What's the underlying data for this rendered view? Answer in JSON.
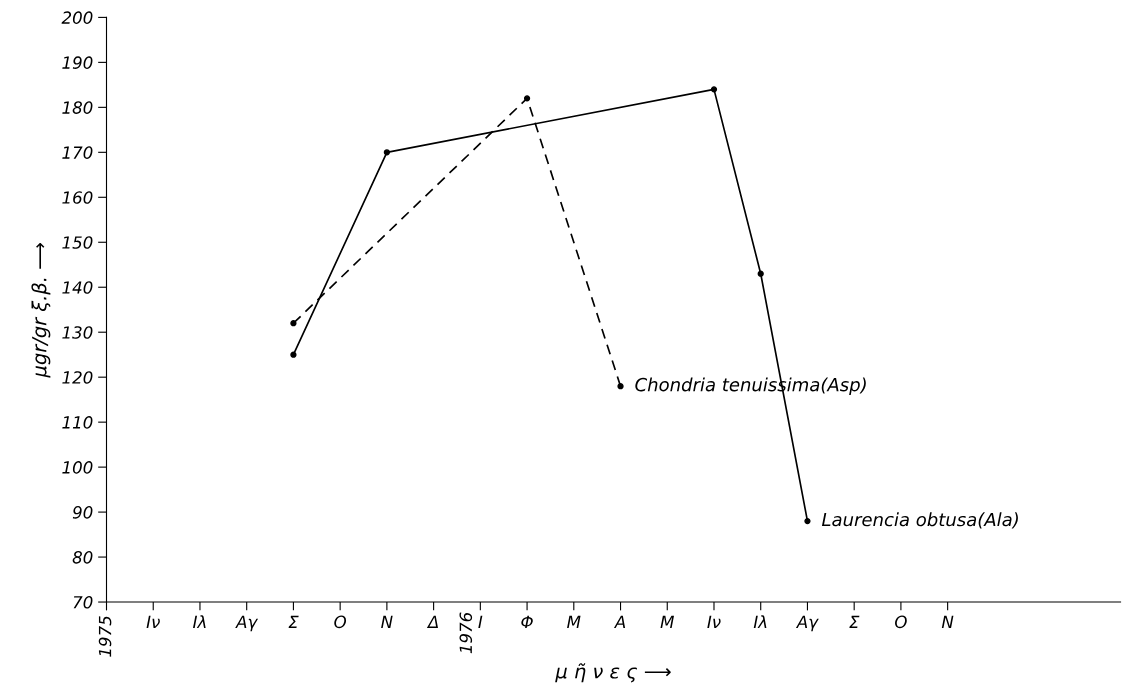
{
  "chart_data": {
    "type": "line",
    "xlabel": "μ ῆ ν ε ς ⟶",
    "ylabel": "μgr/gr ξ.β. ⟶",
    "categories": [
      "1975",
      "Ιν",
      "Ιλ",
      "Αγ",
      "Σ",
      "Ο",
      "Ν",
      "Δ",
      "Ι",
      "Φ",
      "Μ",
      "Α",
      "Μ",
      "Ιν",
      "Ιλ",
      "Αγ",
      "Σ",
      "Ο",
      "Ν"
    ],
    "series": [
      {
        "name": "Laurencia obtusa(Ala)",
        "color": "#000000",
        "line_style": "solid",
        "values": [
          null,
          null,
          null,
          null,
          125,
          null,
          170,
          null,
          null,
          null,
          null,
          null,
          null,
          184,
          143,
          88,
          null,
          null,
          null
        ]
      },
      {
        "name": "Chondria tenuissima(Asp)",
        "color": "#000000",
        "line_style": "dashed",
        "values": [
          null,
          null,
          null,
          null,
          132,
          null,
          null,
          null,
          null,
          182,
          null,
          118,
          null,
          null,
          null,
          null,
          null,
          null,
          null
        ]
      }
    ],
    "ylim": [
      70,
      200
    ],
    "yticks": [
      70,
      80,
      90,
      100,
      110,
      120,
      130,
      140,
      150,
      160,
      170,
      180,
      190,
      200
    ],
    "annotations": [
      "1976"
    ],
    "grid": false,
    "legend": false,
    "marker": "circle"
  }
}
